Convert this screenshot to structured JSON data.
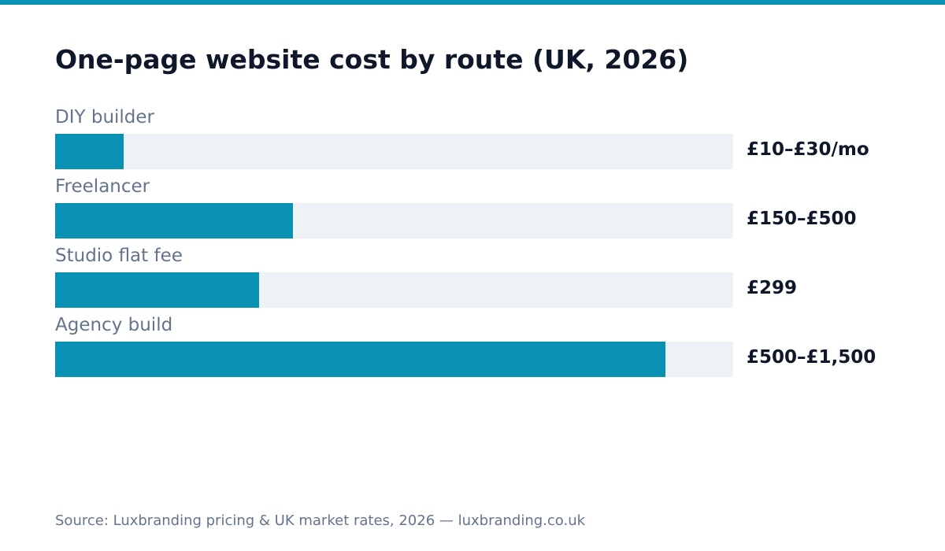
{
  "colors": {
    "accent": "#0891b2",
    "track": "#edf2f7",
    "title": "#0f172a",
    "muted": "#64748b"
  },
  "chart_data": {
    "type": "bar",
    "orientation": "horizontal",
    "title": "One-page website cost by route (UK, 2026)",
    "categories": [
      "DIY builder",
      "Freelancer",
      "Studio flat fee",
      "Agency build"
    ],
    "value_labels": [
      "£10–£30/mo",
      "£150–£500",
      "£299",
      "£500–£1,500"
    ],
    "values": [
      0.101,
      0.351,
      0.301,
      0.9
    ],
    "xlim": [
      0,
      1
    ],
    "grid": false,
    "legend": "none"
  },
  "footer": {
    "source": "Source: Luxbranding pricing & UK market rates, 2026 — luxbranding.co.uk"
  }
}
